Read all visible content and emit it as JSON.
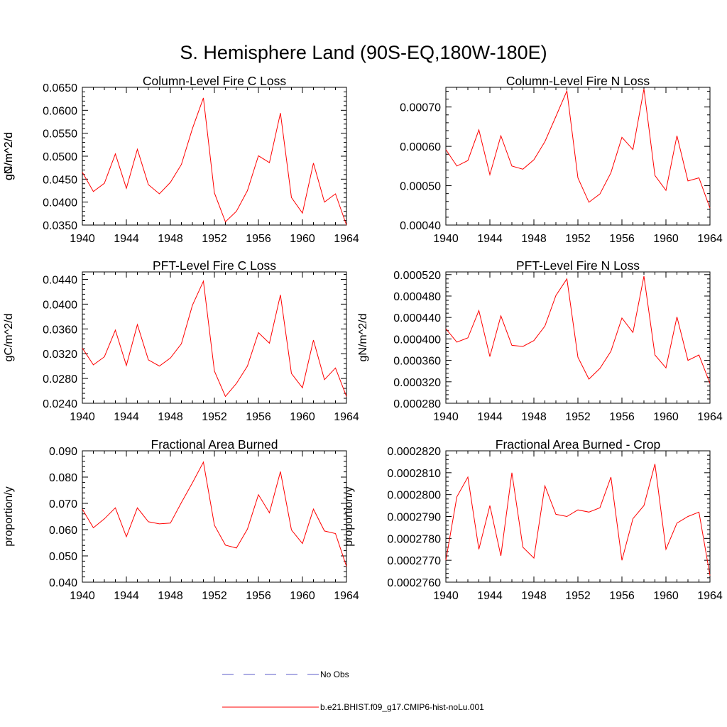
{
  "figure_title": "S. Hemisphere Land (90S-EQ,180W-180E)",
  "colors": {
    "model": "#ff0000",
    "obs": "#5b5bc8",
    "axis": "#000000"
  },
  "legend": {
    "obs_label": "No Obs",
    "model_label": "b.e21.BHIST.f09_g17.CMIP6-hist-noLu.001"
  },
  "chart_data": [
    {
      "type": "line",
      "title": "Column-Level Fire C Loss",
      "ylabel": "gC/m^2/d",
      "xlim": [
        1940,
        1964
      ],
      "ylim": [
        0.035,
        0.065
      ],
      "xticks": [
        1940,
        1944,
        1948,
        1952,
        1956,
        1960,
        1964
      ],
      "xtick_labels": [
        "1940",
        "1944",
        "1948",
        "1952",
        "1956",
        "1960",
        "1964"
      ],
      "yticks": [
        0.035,
        0.04,
        0.045,
        0.05,
        0.055,
        0.06,
        0.065
      ],
      "ytick_labels": [
        "0.0350",
        "0.0400",
        "0.0450",
        "0.0500",
        "0.0550",
        "0.0600",
        "0.0650"
      ],
      "series": [
        {
          "name": "b.e21.BHIST.f09_g17.CMIP6-hist-noLu.001",
          "x": [
            1940,
            1941,
            1942,
            1943,
            1944,
            1945,
            1946,
            1947,
            1948,
            1949,
            1950,
            1951,
            1952,
            1953,
            1954,
            1955,
            1956,
            1957,
            1958,
            1959,
            1960,
            1961,
            1962,
            1963,
            1964
          ],
          "y": [
            0.0465,
            0.0423,
            0.0441,
            0.0505,
            0.043,
            0.0515,
            0.0438,
            0.0418,
            0.0443,
            0.0482,
            0.056,
            0.0627,
            0.042,
            0.0357,
            0.038,
            0.0425,
            0.0501,
            0.0486,
            0.0594,
            0.041,
            0.0376,
            0.0485,
            0.04,
            0.0418,
            0.035
          ]
        }
      ]
    },
    {
      "type": "line",
      "title": "Column-Level Fire N Loss",
      "ylabel": "gN/m^2/d",
      "xlim": [
        1940,
        1964
      ],
      "ylim": [
        0.0004,
        0.00075
      ],
      "xticks": [
        1940,
        1944,
        1948,
        1952,
        1956,
        1960,
        1964
      ],
      "xtick_labels": [
        "1940",
        "1944",
        "1948",
        "1952",
        "1956",
        "1960",
        "1964"
      ],
      "yticks": [
        0.0004,
        0.0005,
        0.0006,
        0.0007
      ],
      "ytick_labels": [
        "0.00040",
        "0.00050",
        "0.00060",
        "0.00070"
      ],
      "series": [
        {
          "name": "b.e21.BHIST.f09_g17.CMIP6-hist-noLu.001",
          "x": [
            1940,
            1941,
            1942,
            1943,
            1944,
            1945,
            1946,
            1947,
            1948,
            1949,
            1950,
            1951,
            1952,
            1953,
            1954,
            1955,
            1956,
            1957,
            1958,
            1959,
            1960,
            1961,
            1962,
            1963,
            1964
          ],
          "y": [
            0.000592,
            0.00055,
            0.000564,
            0.000642,
            0.000528,
            0.000627,
            0.00055,
            0.000542,
            0.000566,
            0.000612,
            0.000676,
            0.000741,
            0.00052,
            0.000458,
            0.000479,
            0.000533,
            0.000623,
            0.000592,
            0.000746,
            0.000526,
            0.000488,
            0.000627,
            0.000512,
            0.00052,
            0.000443
          ]
        }
      ]
    },
    {
      "type": "line",
      "title": "PFT-Level Fire C Loss",
      "ylabel": "gC/m^2/d",
      "xlim": [
        1940,
        1964
      ],
      "ylim": [
        0.024,
        0.0452
      ],
      "xticks": [
        1940,
        1944,
        1948,
        1952,
        1956,
        1960,
        1964
      ],
      "xtick_labels": [
        "1940",
        "1944",
        "1948",
        "1952",
        "1956",
        "1960",
        "1964"
      ],
      "yticks": [
        0.024,
        0.028,
        0.032,
        0.036,
        0.04,
        0.044
      ],
      "ytick_labels": [
        "0.0240",
        "0.0280",
        "0.0320",
        "0.0360",
        "0.0400",
        "0.0440"
      ],
      "series": [
        {
          "name": "b.e21.BHIST.f09_g17.CMIP6-hist-noLu.001",
          "x": [
            1940,
            1941,
            1942,
            1943,
            1944,
            1945,
            1946,
            1947,
            1948,
            1949,
            1950,
            1951,
            1952,
            1953,
            1954,
            1955,
            1956,
            1957,
            1958,
            1959,
            1960,
            1961,
            1962,
            1963,
            1964
          ],
          "y": [
            0.0329,
            0.0302,
            0.0315,
            0.0358,
            0.0301,
            0.0367,
            0.031,
            0.03,
            0.0313,
            0.0336,
            0.0398,
            0.0437,
            0.0292,
            0.0251,
            0.0272,
            0.03,
            0.0354,
            0.0337,
            0.0415,
            0.0288,
            0.0265,
            0.0342,
            0.0278,
            0.0297,
            0.0251
          ]
        }
      ]
    },
    {
      "type": "line",
      "title": "PFT-Level Fire N Loss",
      "ylabel": "gN/m^2/d",
      "xlim": [
        1940,
        1964
      ],
      "ylim": [
        0.00028,
        0.000525
      ],
      "xticks": [
        1940,
        1944,
        1948,
        1952,
        1956,
        1960,
        1964
      ],
      "xtick_labels": [
        "1940",
        "1944",
        "1948",
        "1952",
        "1956",
        "1960",
        "1964"
      ],
      "yticks": [
        0.00028,
        0.00032,
        0.00036,
        0.0004,
        0.00044,
        0.00048,
        0.00052
      ],
      "ytick_labels": [
        "0.000280",
        "0.000320",
        "0.000360",
        "0.000400",
        "0.000440",
        "0.000480",
        "0.000520"
      ],
      "series": [
        {
          "name": "b.e21.BHIST.f09_g17.CMIP6-hist-noLu.001",
          "x": [
            1940,
            1941,
            1942,
            1943,
            1944,
            1945,
            1946,
            1947,
            1948,
            1949,
            1950,
            1951,
            1952,
            1953,
            1954,
            1955,
            1956,
            1957,
            1958,
            1959,
            1960,
            1961,
            1962,
            1963,
            1964
          ],
          "y": [
            0.000419,
            0.000394,
            0.000402,
            0.000453,
            0.000367,
            0.000443,
            0.000388,
            0.000386,
            0.000397,
            0.000424,
            0.000481,
            0.000512,
            0.000366,
            0.000325,
            0.000345,
            0.000377,
            0.000439,
            0.000412,
            0.000517,
            0.00037,
            0.000346,
            0.000441,
            0.00036,
            0.00037,
            0.000317
          ]
        }
      ]
    },
    {
      "type": "line",
      "title": "Fractional Area Burned",
      "ylabel": "proportion/y",
      "xlim": [
        1940,
        1964
      ],
      "ylim": [
        0.04,
        0.09
      ],
      "xticks": [
        1940,
        1944,
        1948,
        1952,
        1956,
        1960,
        1964
      ],
      "xtick_labels": [
        "1940",
        "1944",
        "1948",
        "1952",
        "1956",
        "1960",
        "1964"
      ],
      "yticks": [
        0.04,
        0.05,
        0.06,
        0.07,
        0.08,
        0.09
      ],
      "ytick_labels": [
        "0.040",
        "0.050",
        "0.060",
        "0.070",
        "0.080",
        "0.090"
      ],
      "series": [
        {
          "name": "b.e21.BHIST.f09_g17.CMIP6-hist-noLu.001",
          "x": [
            1940,
            1941,
            1942,
            1943,
            1944,
            1945,
            1946,
            1947,
            1948,
            1949,
            1950,
            1951,
            1952,
            1953,
            1954,
            1955,
            1956,
            1957,
            1958,
            1959,
            1960,
            1961,
            1962,
            1963,
            1964
          ],
          "y": [
            0.0678,
            0.0607,
            0.0641,
            0.0683,
            0.0573,
            0.0683,
            0.063,
            0.0622,
            0.0625,
            0.0703,
            0.0778,
            0.0857,
            0.0617,
            0.0541,
            0.053,
            0.0602,
            0.0733,
            0.0664,
            0.0821,
            0.0599,
            0.0547,
            0.0678,
            0.0595,
            0.0585,
            0.046
          ]
        }
      ]
    },
    {
      "type": "line",
      "title": "Fractional Area Burned - Crop",
      "ylabel": "proportion/y",
      "xlim": [
        1940,
        1964
      ],
      "ylim": [
        0.000276,
        0.000282
      ],
      "xticks": [
        1940,
        1944,
        1948,
        1952,
        1956,
        1960,
        1964
      ],
      "xtick_labels": [
        "1940",
        "1944",
        "1948",
        "1952",
        "1956",
        "1960",
        "1964"
      ],
      "yticks": [
        0.000276,
        0.000277,
        0.000278,
        0.000279,
        0.00028,
        0.000281,
        0.000282
      ],
      "ytick_labels": [
        "0.0002760",
        "0.0002770",
        "0.0002780",
        "0.0002790",
        "0.0002800",
        "0.0002810",
        "0.0002820"
      ],
      "series": [
        {
          "name": "b.e21.BHIST.f09_g17.CMIP6-hist-noLu.001",
          "x": [
            1940,
            1941,
            1942,
            1943,
            1944,
            1945,
            1946,
            1947,
            1948,
            1949,
            1950,
            1951,
            1952,
            1953,
            1954,
            1955,
            1956,
            1957,
            1958,
            1959,
            1960,
            1961,
            1962,
            1963,
            1964
          ],
          "y": [
            0.000277,
            0.0002799,
            0.0002808,
            0.0002775,
            0.0002795,
            0.0002772,
            0.000281,
            0.0002776,
            0.0002771,
            0.0002804,
            0.0002791,
            0.000279,
            0.0002793,
            0.0002792,
            0.0002794,
            0.0002808,
            0.000277,
            0.0002789,
            0.0002795,
            0.0002814,
            0.0002775,
            0.0002787,
            0.000279,
            0.0002792,
            0.0002763
          ]
        }
      ]
    }
  ]
}
